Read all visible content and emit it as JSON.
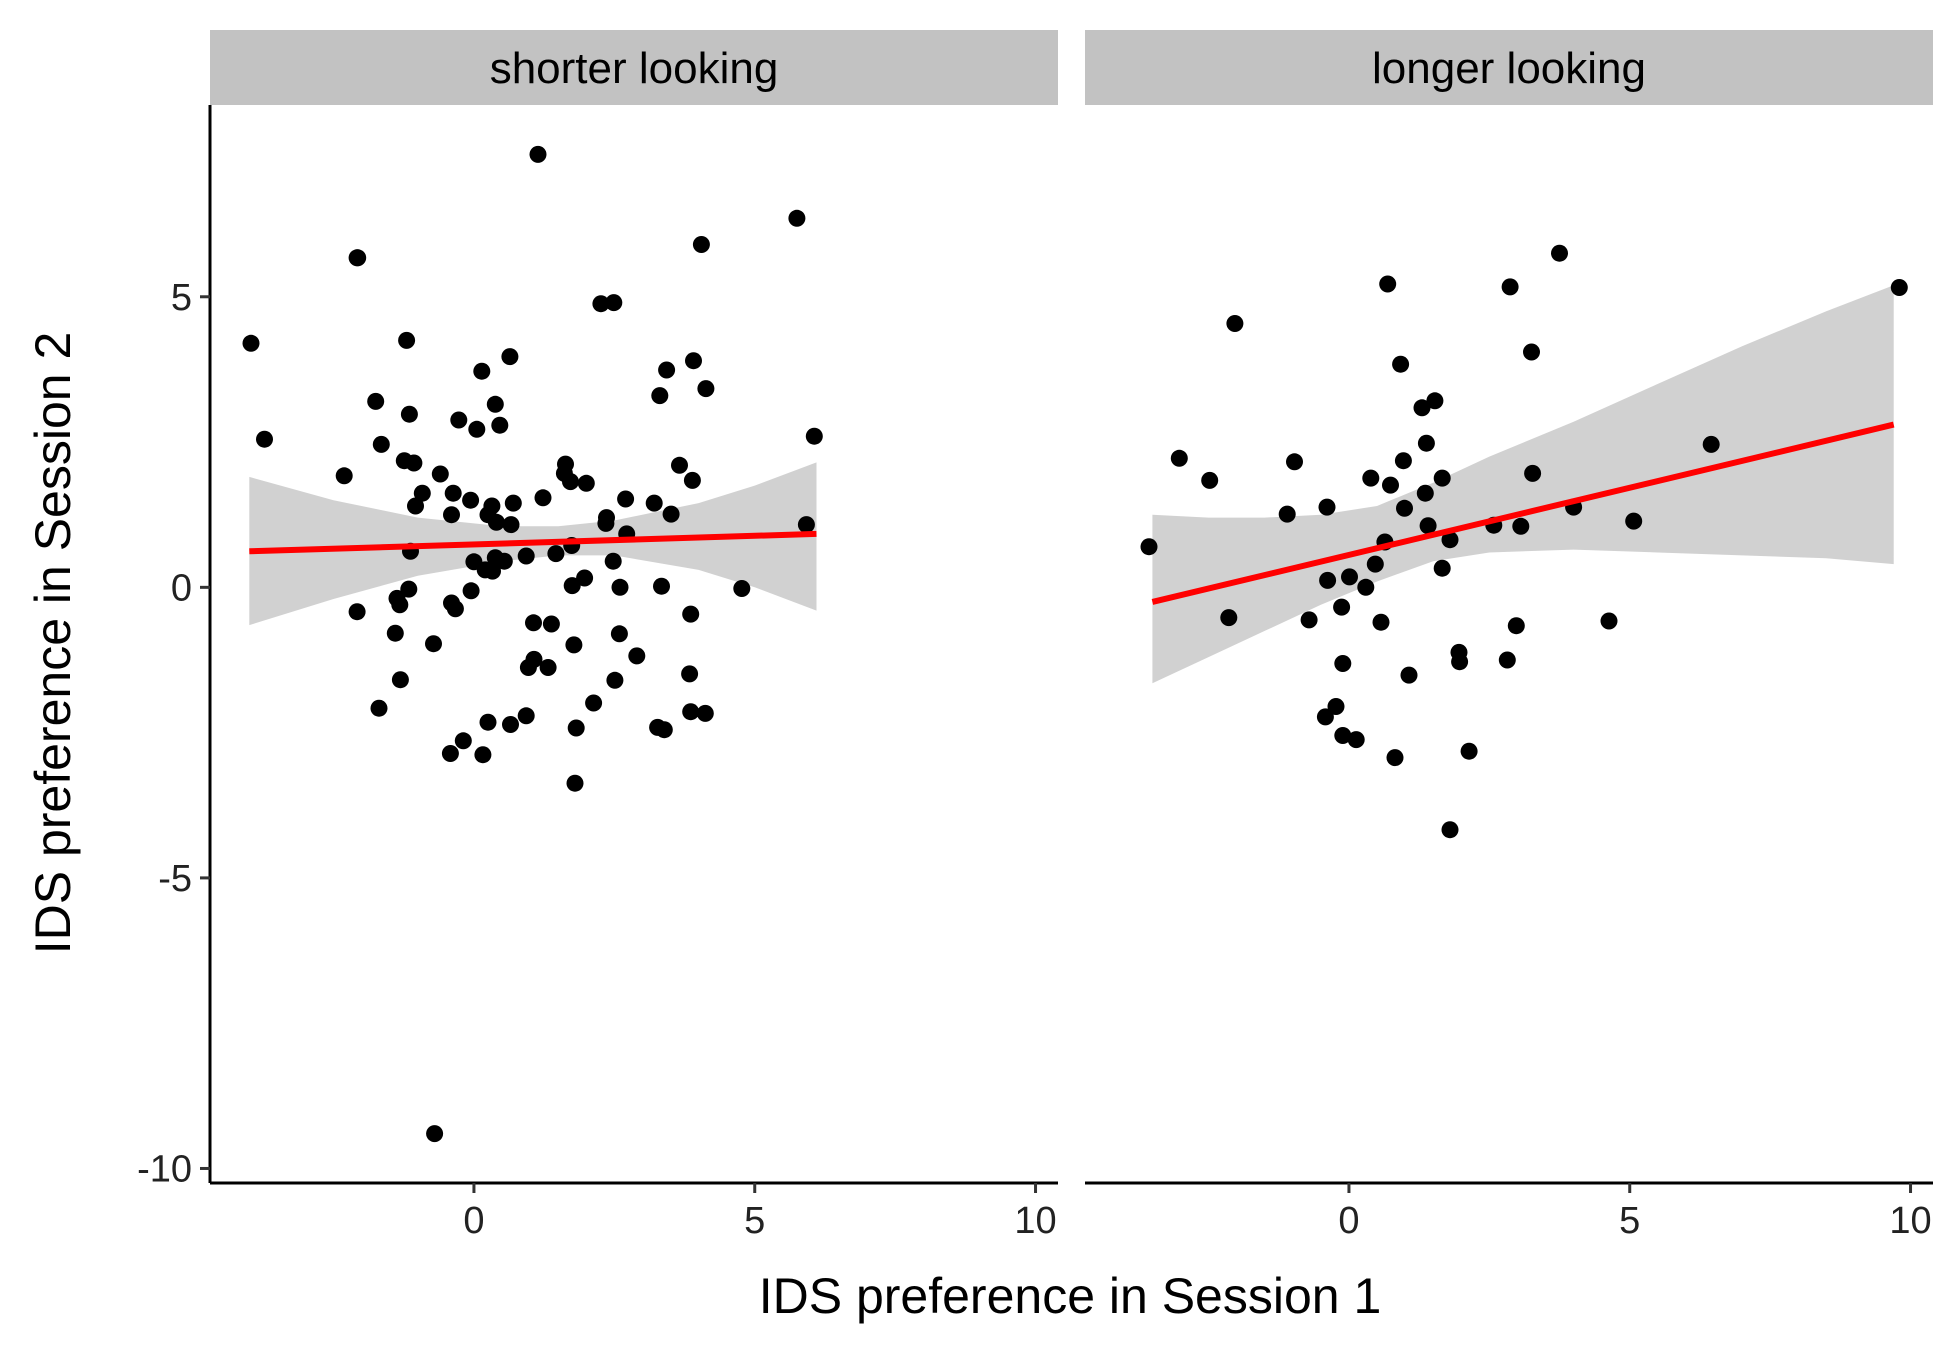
{
  "chart_data": {
    "type": "scatter",
    "xlabel": "IDS preference in Session 1",
    "ylabel": "IDS preference in Session 2",
    "xlim": [
      -4.7,
      10.4
    ],
    "ylim": [
      -10.25,
      8.3
    ],
    "x_ticks": [
      0,
      5,
      10
    ],
    "x_tick_labels": [
      "0",
      "5",
      "10"
    ],
    "y_ticks": [
      5,
      0,
      -5,
      -10
    ],
    "y_tick_labels": [
      "5",
      "0",
      "-5",
      "-10"
    ],
    "grid": false,
    "colors": {
      "points": "#000000",
      "fit_line": "#ff0000",
      "band": "#999999",
      "strip": "#c2c2c2"
    },
    "panels": [
      {
        "strip_label": "shorter looking",
        "fit": {
          "x": [
            -4.0,
            6.1
          ],
          "y": [
            0.62,
            0.92
          ]
        },
        "band": {
          "x": [
            -4.0,
            -2.5,
            -1.0,
            0.5,
            1.5,
            2.5,
            4.0,
            5.0,
            6.1
          ],
          "upper": [
            1.9,
            1.5,
            1.2,
            1.05,
            1.05,
            1.15,
            1.45,
            1.75,
            2.15
          ],
          "lower": [
            -0.65,
            -0.2,
            0.2,
            0.45,
            0.55,
            0.55,
            0.3,
            0.0,
            -0.4
          ]
        },
        "points": [
          [
            -3.97,
            4.2
          ],
          [
            -3.73,
            2.55
          ],
          [
            -2.07,
            5.67
          ],
          [
            -2.31,
            1.92
          ],
          [
            -2.08,
            5.67
          ],
          [
            -1.75,
            3.2
          ],
          [
            -1.65,
            2.46
          ],
          [
            -1.2,
            4.25
          ],
          [
            -1.15,
            2.98
          ],
          [
            -1.24,
            2.18
          ],
          [
            -1.07,
            2.14
          ],
          [
            -1.04,
            1.4
          ],
          [
            -1.13,
            0.62
          ],
          [
            -1.37,
            -0.19
          ],
          [
            -1.32,
            -0.3
          ],
          [
            -1.4,
            -0.79
          ],
          [
            -1.31,
            -1.59
          ],
          [
            -1.69,
            -2.08
          ],
          [
            -2.08,
            -0.42
          ],
          [
            -1.16,
            -0.03
          ],
          [
            -0.6,
            1.95
          ],
          [
            -0.92,
            1.62
          ],
          [
            -0.37,
            1.62
          ],
          [
            -0.4,
            1.25
          ],
          [
            -0.27,
            2.88
          ],
          [
            -0.06,
            1.5
          ],
          [
            0.05,
            2.72
          ],
          [
            0.14,
            3.72
          ],
          [
            0.38,
            3.15
          ],
          [
            0.46,
            2.79
          ],
          [
            0.32,
            1.4
          ],
          [
            0.4,
            1.12
          ],
          [
            0.25,
            1.25
          ],
          [
            0.7,
            1.45
          ],
          [
            0.66,
            1.08
          ],
          [
            0.0,
            0.44
          ],
          [
            0.2,
            0.3
          ],
          [
            0.33,
            0.28
          ],
          [
            0.38,
            0.51
          ],
          [
            0.54,
            0.45
          ],
          [
            0.93,
            0.54
          ],
          [
            -0.05,
            -0.06
          ],
          [
            -0.4,
            -0.27
          ],
          [
            -0.33,
            -0.37
          ],
          [
            -0.72,
            -0.97
          ],
          [
            0.64,
            3.97
          ],
          [
            1.14,
            7.45
          ],
          [
            1.23,
            1.54
          ],
          [
            1.63,
            2.12
          ],
          [
            1.61,
            1.96
          ],
          [
            1.72,
            1.82
          ],
          [
            2.0,
            1.79
          ],
          [
            1.46,
            0.58
          ],
          [
            1.74,
            0.72
          ],
          [
            1.75,
            0.03
          ],
          [
            1.97,
            0.16
          ],
          [
            1.06,
            -0.61
          ],
          [
            1.38,
            -0.63
          ],
          [
            1.07,
            -1.24
          ],
          [
            1.32,
            -1.38
          ],
          [
            0.97,
            -1.38
          ],
          [
            1.78,
            -0.99
          ],
          [
            2.26,
            4.88
          ],
          [
            2.49,
            4.9
          ],
          [
            2.36,
            1.2
          ],
          [
            2.35,
            1.1
          ],
          [
            2.7,
            1.52
          ],
          [
            2.72,
            0.92
          ],
          [
            2.48,
            0.45
          ],
          [
            2.6,
            0.0
          ],
          [
            2.59,
            -0.8
          ],
          [
            2.9,
            -1.18
          ],
          [
            2.51,
            -1.6
          ],
          [
            2.13,
            -1.99
          ],
          [
            1.82,
            -2.42
          ],
          [
            0.93,
            -2.21
          ],
          [
            0.65,
            -2.36
          ],
          [
            0.25,
            -2.32
          ],
          [
            -0.19,
            -2.64
          ],
          [
            -0.42,
            -2.86
          ],
          [
            0.16,
            -2.88
          ],
          [
            1.8,
            -3.37
          ],
          [
            3.21,
            1.45
          ],
          [
            3.31,
            3.3
          ],
          [
            3.43,
            3.74
          ],
          [
            3.66,
            2.1
          ],
          [
            3.51,
            1.26
          ],
          [
            3.89,
            1.84
          ],
          [
            3.34,
            0.02
          ],
          [
            3.86,
            -0.46
          ],
          [
            3.84,
            -1.49
          ],
          [
            3.86,
            -2.14
          ],
          [
            4.12,
            -2.17
          ],
          [
            3.27,
            -2.41
          ],
          [
            3.39,
            -2.45
          ],
          [
            4.05,
            5.9
          ],
          [
            3.91,
            3.9
          ],
          [
            4.13,
            3.42
          ],
          [
            4.77,
            -0.02
          ],
          [
            5.75,
            6.35
          ],
          [
            6.06,
            2.6
          ],
          [
            5.92,
            1.08
          ],
          [
            -0.7,
            -9.4
          ]
        ]
      },
      {
        "strip_label": "longer looking",
        "fit": {
          "x": [
            -3.5,
            9.7
          ],
          "y": [
            -0.25,
            2.8
          ]
        },
        "band": {
          "x": [
            -3.5,
            -2.5,
            -1.5,
            -0.5,
            0.5,
            1.5,
            2.5,
            4.0,
            5.5,
            7.0,
            8.5,
            9.7
          ],
          "upper": [
            1.25,
            1.2,
            1.2,
            1.25,
            1.4,
            1.8,
            2.25,
            2.85,
            3.5,
            4.15,
            4.75,
            5.2
          ],
          "lower": [
            -1.65,
            -1.2,
            -0.75,
            -0.3,
            0.1,
            0.45,
            0.6,
            0.65,
            0.6,
            0.55,
            0.5,
            0.4
          ]
        },
        "points": [
          [
            -3.56,
            0.7
          ],
          [
            -3.02,
            2.22
          ],
          [
            -2.48,
            1.84
          ],
          [
            -2.03,
            4.54
          ],
          [
            -2.14,
            -0.52
          ],
          [
            -1.1,
            1.26
          ],
          [
            -0.97,
            2.16
          ],
          [
            -0.71,
            -0.56
          ],
          [
            -0.39,
            1.38
          ],
          [
            -0.38,
            0.12
          ],
          [
            -0.42,
            -2.23
          ],
          [
            -0.23,
            -2.05
          ],
          [
            -0.13,
            -0.34
          ],
          [
            -0.11,
            -1.31
          ],
          [
            -0.11,
            -2.55
          ],
          [
            0.01,
            0.18
          ],
          [
            0.13,
            -2.62
          ],
          [
            0.3,
            0.0
          ],
          [
            0.39,
            1.88
          ],
          [
            0.47,
            0.4
          ],
          [
            0.57,
            -0.6
          ],
          [
            0.64,
            0.78
          ],
          [
            0.74,
            1.76
          ],
          [
            0.69,
            5.22
          ],
          [
            0.92,
            3.84
          ],
          [
            0.99,
            1.36
          ],
          [
            0.97,
            2.18
          ],
          [
            1.07,
            -1.51
          ],
          [
            0.82,
            -2.93
          ],
          [
            1.3,
            3.09
          ],
          [
            1.38,
            2.48
          ],
          [
            1.36,
            1.62
          ],
          [
            1.41,
            1.06
          ],
          [
            1.53,
            3.21
          ],
          [
            1.66,
            1.88
          ],
          [
            1.66,
            0.33
          ],
          [
            1.8,
            0.82
          ],
          [
            1.8,
            -4.17
          ],
          [
            1.96,
            -1.12
          ],
          [
            1.97,
            -1.28
          ],
          [
            2.14,
            -2.82
          ],
          [
            2.58,
            1.07
          ],
          [
            2.82,
            -1.25
          ],
          [
            2.87,
            5.17
          ],
          [
            2.98,
            -0.66
          ],
          [
            3.06,
            1.05
          ],
          [
            3.25,
            4.05
          ],
          [
            3.27,
            1.96
          ],
          [
            3.75,
            5.75
          ],
          [
            4.0,
            1.38
          ],
          [
            4.63,
            -0.58
          ],
          [
            5.07,
            1.14
          ],
          [
            6.45,
            2.46
          ],
          [
            9.8,
            5.16
          ]
        ]
      }
    ]
  }
}
